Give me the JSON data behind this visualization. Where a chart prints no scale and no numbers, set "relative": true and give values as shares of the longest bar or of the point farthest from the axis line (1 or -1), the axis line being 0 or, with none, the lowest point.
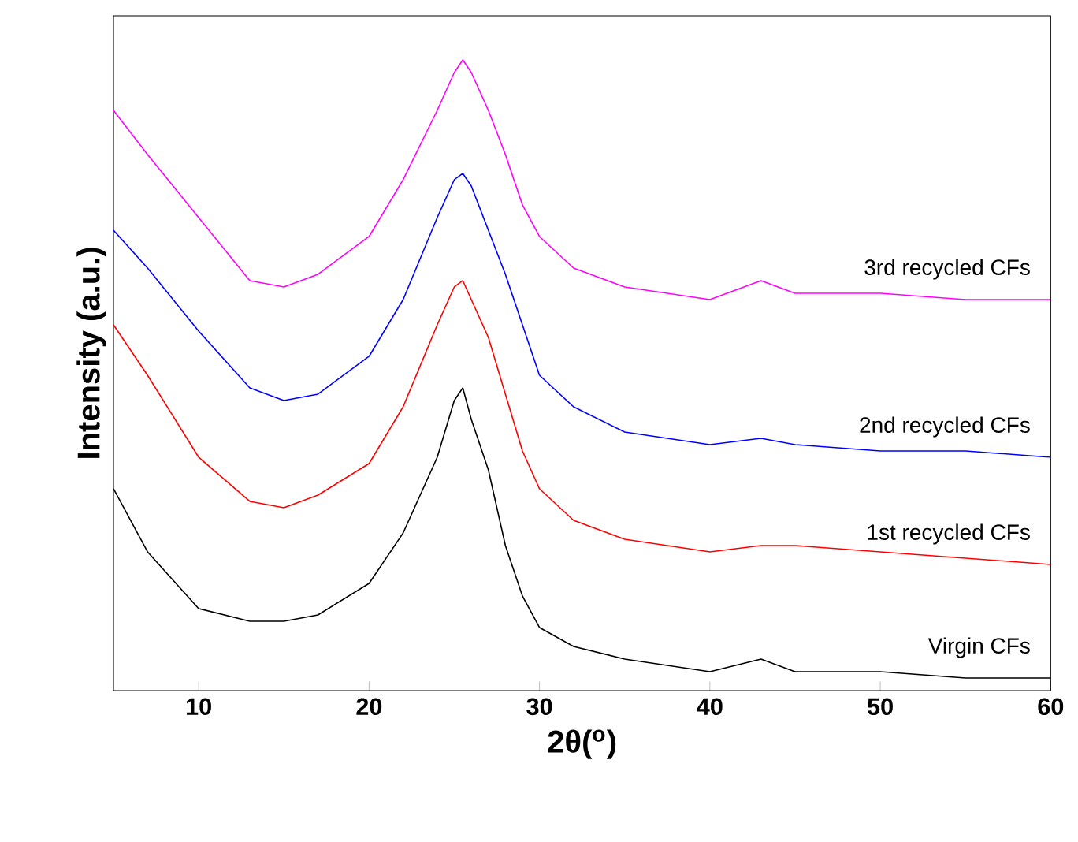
{
  "chart_data": {
    "type": "line",
    "relative": true,
    "xlabel": "2θ($^{o}$)",
    "ylabel": "Intensity (a.u.)",
    "xlim": [
      5,
      60
    ],
    "xticks": [
      10,
      20,
      30,
      40,
      50,
      60
    ],
    "tick_labels": "x",
    "x": [
      5,
      7,
      10,
      13,
      15,
      17,
      20,
      22,
      24,
      25,
      25.5,
      26,
      27,
      28,
      29,
      30,
      32,
      35,
      40,
      43,
      45,
      50,
      55,
      60
    ],
    "series": [
      {
        "name": "Virgin CFs",
        "color": "#000000",
        "values": [
          0.32,
          0.22,
          0.13,
          0.11,
          0.11,
          0.12,
          0.17,
          0.25,
          0.37,
          0.46,
          0.48,
          0.43,
          0.35,
          0.23,
          0.15,
          0.1,
          0.07,
          0.05,
          0.03,
          0.05,
          0.03,
          0.03,
          0.02,
          0.02
        ]
      },
      {
        "name": "1st recycled CFs",
        "color": "#ff0000",
        "values": [
          0.58,
          0.5,
          0.37,
          0.3,
          0.29,
          0.31,
          0.36,
          0.45,
          0.58,
          0.64,
          0.65,
          0.62,
          0.56,
          0.47,
          0.38,
          0.32,
          0.27,
          0.24,
          0.22,
          0.23,
          0.23,
          0.22,
          0.21,
          0.2
        ]
      },
      {
        "name": "2nd recycled CFs",
        "color": "#0000ff",
        "values": [
          0.73,
          0.67,
          0.57,
          0.48,
          0.46,
          0.47,
          0.53,
          0.62,
          0.75,
          0.81,
          0.82,
          0.8,
          0.73,
          0.66,
          0.58,
          0.5,
          0.45,
          0.41,
          0.39,
          0.4,
          0.39,
          0.38,
          0.38,
          0.37
        ]
      },
      {
        "name": "3rd recycled CFs",
        "color": "#ff00ff",
        "values": [
          0.92,
          0.85,
          0.75,
          0.65,
          0.64,
          0.66,
          0.72,
          0.81,
          0.92,
          0.98,
          1.0,
          0.98,
          0.92,
          0.85,
          0.77,
          0.72,
          0.67,
          0.64,
          0.62,
          0.65,
          0.63,
          0.63,
          0.62,
          0.62
        ]
      }
    ]
  }
}
